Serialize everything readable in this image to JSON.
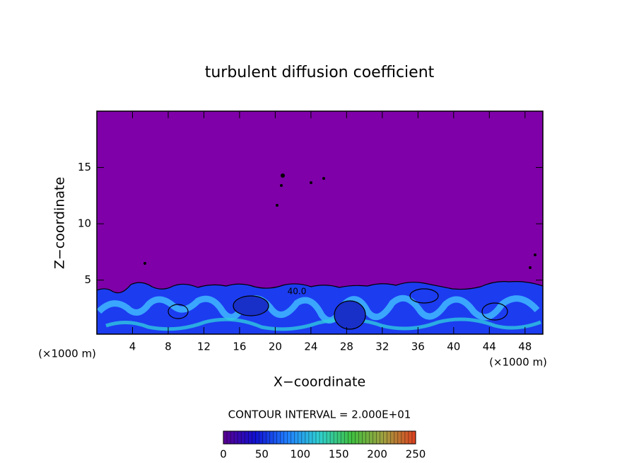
{
  "chart_data": {
    "type": "contour",
    "title": "turbulent diffusion coefficient",
    "xlabel": "X−coordinate",
    "ylabel": "Z−coordinate",
    "x_unit": "(×1000 m)",
    "y_unit": "(×1000 m)",
    "xlim": [
      0,
      50
    ],
    "xticks": [
      4,
      8,
      12,
      16,
      20,
      24,
      28,
      32,
      36,
      40,
      44,
      48
    ],
    "ylim": [
      0.2,
      20
    ],
    "yticks": [
      5,
      10,
      15
    ],
    "background_color": "#7f00a8",
    "contour_label": "40.0",
    "colorbar": {
      "title": "CONTOUR INTERVAL = 2.000E+01",
      "lim": [
        0,
        250
      ],
      "ticks": [
        0,
        50,
        100,
        150,
        200,
        250
      ],
      "colors": [
        "#5a0090",
        "#1010d0",
        "#2080ff",
        "#30d0d0",
        "#40c040",
        "#a0a040",
        "#e04020"
      ]
    }
  }
}
